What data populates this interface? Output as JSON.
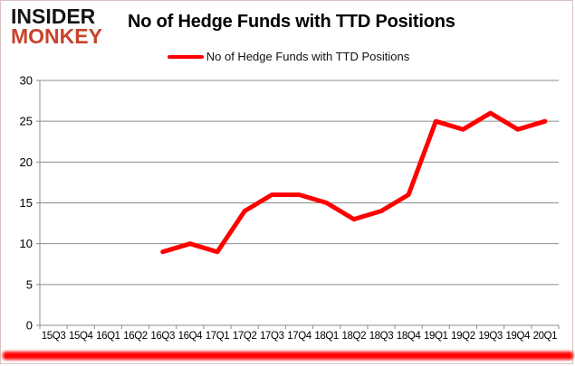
{
  "brand": {
    "line1": "INSIDER",
    "line2": "MONKEY",
    "color": "#c8432b"
  },
  "header": {
    "title": "No of Hedge Funds with TTD Positions"
  },
  "legend": {
    "label": "No of Hedge Funds with TTD Positions",
    "marker_color": "#ff0000"
  },
  "colors": {
    "line": "#ff0000",
    "grid": "#8c8c8c",
    "axis": "#8c8c8c",
    "tick_text": "#000000",
    "accent_bar": "#ff0000"
  },
  "chart_data": {
    "type": "line",
    "title": "No of Hedge Funds with TTD Positions",
    "categories": [
      "15Q3",
      "15Q4",
      "16Q1",
      "16Q2",
      "16Q3",
      "16Q4",
      "17Q1",
      "17Q2",
      "17Q3",
      "17Q4",
      "18Q1",
      "18Q2",
      "18Q3",
      "18Q4",
      "19Q1",
      "19Q2",
      "19Q3",
      "19Q4",
      "20Q1"
    ],
    "series": [
      {
        "name": "No of Hedge Funds with TTD Positions",
        "color": "#ff0000",
        "values": [
          null,
          null,
          null,
          null,
          9,
          10,
          9,
          14,
          16,
          16,
          15,
          13,
          14,
          16,
          25,
          24,
          26,
          24,
          25
        ]
      }
    ],
    "xlabel": "",
    "ylabel": "",
    "ylim": [
      0,
      30
    ],
    "yticks": [
      0,
      5,
      10,
      15,
      20,
      25,
      30
    ],
    "grid": true,
    "legend_position": "top"
  }
}
